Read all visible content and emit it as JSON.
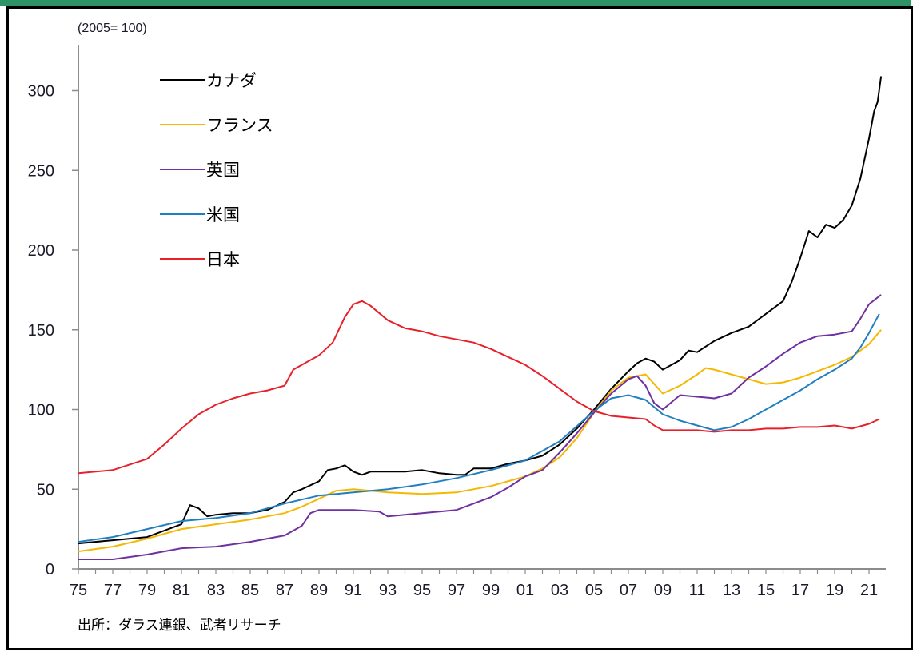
{
  "chart_data": {
    "type": "line",
    "title": "",
    "unit_label": "(2005= 100)",
    "source": "出所：ダラス連銀、武者リサーチ",
    "xlabel": "",
    "ylabel": "",
    "xlim": [
      1975,
      2022
    ],
    "ylim": [
      0,
      330
    ],
    "y_ticks": [
      0,
      50,
      100,
      150,
      200,
      250,
      300
    ],
    "y_tick_labels": [
      "0",
      "50",
      "100",
      "150",
      "200",
      "250",
      "300"
    ],
    "x_ticks": [
      1975,
      1977,
      1979,
      1981,
      1983,
      1985,
      1987,
      1989,
      1991,
      1993,
      1995,
      1997,
      1999,
      2001,
      2003,
      2005,
      2007,
      2009,
      2011,
      2013,
      2015,
      2017,
      2019,
      2021
    ],
    "x_tick_labels": [
      "75",
      "77",
      "79",
      "81",
      "83",
      "85",
      "87",
      "89",
      "91",
      "93",
      "95",
      "97",
      "99",
      "01",
      "03",
      "05",
      "07",
      "09",
      "11",
      "13",
      "15",
      "17",
      "19",
      "21"
    ],
    "grid": false,
    "legend_position": "top-left",
    "series": [
      {
        "name": "カナダ",
        "color": "#000000",
        "x": [
          1975,
          1977,
          1979,
          1980,
          1981,
          1981.5,
          1982,
          1982.5,
          1983,
          1984,
          1985,
          1986,
          1987,
          1987.5,
          1988,
          1989,
          1989.5,
          1990,
          1990.5,
          1991,
          1991.5,
          1992,
          1993,
          1994,
          1995,
          1996,
          1997,
          1997.5,
          1998,
          1999,
          2000,
          2001,
          2002,
          2003,
          2004,
          2005,
          2006,
          2007,
          2007.5,
          2008,
          2008.5,
          2009,
          2010,
          2010.5,
          2011,
          2012,
          2013,
          2014,
          2015,
          2016,
          2016.5,
          2017,
          2017.5,
          2018,
          2018.5,
          2019,
          2019.5,
          2020,
          2020.5,
          2021,
          2021.3,
          2021.5,
          2021.7
        ],
        "values": [
          16,
          18,
          20,
          24,
          28,
          40,
          38,
          33,
          34,
          35,
          35,
          37,
          42,
          48,
          50,
          55,
          62,
          63,
          65,
          61,
          59,
          61,
          61,
          61,
          62,
          60,
          59,
          59,
          63,
          63,
          66,
          68,
          71,
          78,
          88,
          100,
          113,
          124,
          129,
          132,
          130,
          125,
          131,
          137,
          136,
          143,
          148,
          152,
          160,
          168,
          180,
          195,
          212,
          208,
          216,
          214,
          219,
          228,
          245,
          270,
          287,
          293,
          309
        ]
      },
      {
        "name": "フランス",
        "color": "#f5b800",
        "x": [
          1975,
          1977,
          1979,
          1981,
          1983,
          1985,
          1987,
          1988,
          1989,
          1990,
          1991,
          1993,
          1995,
          1997,
          1999,
          2001,
          2002,
          2003,
          2004,
          2005,
          2006,
          2007,
          2008,
          2008.5,
          2009,
          2010,
          2011,
          2011.5,
          2012,
          2013,
          2014,
          2015,
          2016,
          2017,
          2018,
          2019,
          2020,
          2021,
          2021.7
        ],
        "values": [
          11,
          14,
          19,
          25,
          28,
          31,
          35,
          39,
          44,
          49,
          50,
          48,
          47,
          48,
          52,
          58,
          63,
          70,
          82,
          98,
          112,
          120,
          122,
          116,
          110,
          115,
          122,
          126,
          125,
          122,
          119,
          116,
          117,
          120,
          124,
          128,
          133,
          141,
          150
        ]
      },
      {
        "name": "英国",
        "color": "#7030a0",
        "x": [
          1975,
          1977,
          1979,
          1981,
          1983,
          1985,
          1987,
          1988,
          1988.5,
          1989,
          1991,
          1992.5,
          1993,
          1995,
          1997,
          1999,
          2000,
          2001,
          2002,
          2003,
          2004,
          2005,
          2006,
          2007,
          2007.5,
          2008,
          2008.5,
          2009,
          2010,
          2011,
          2012,
          2013,
          2014,
          2015,
          2016,
          2017,
          2018,
          2019,
          2020,
          2020.5,
          2021,
          2021.7
        ],
        "values": [
          6,
          6,
          9,
          13,
          14,
          17,
          21,
          27,
          35,
          37,
          37,
          36,
          33,
          35,
          37,
          45,
          51,
          58,
          62,
          73,
          85,
          98,
          110,
          119,
          121,
          115,
          104,
          100,
          109,
          108,
          107,
          110,
          120,
          127,
          135,
          142,
          146,
          147,
          149,
          157,
          166,
          172
        ]
      },
      {
        "name": "米国",
        "color": "#1f7fc0",
        "x": [
          1975,
          1977,
          1979,
          1981,
          1983,
          1985,
          1987,
          1989,
          1991,
          1993,
          1995,
          1997,
          1999,
          2001,
          2003,
          2005,
          2006,
          2007,
          2008,
          2009,
          2010,
          2011,
          2012,
          2013,
          2014,
          2015,
          2016,
          2017,
          2018,
          2019,
          2020,
          2020.5,
          2021,
          2021.6
        ],
        "values": [
          17,
          20,
          25,
          30,
          32,
          35,
          41,
          46,
          48,
          50,
          53,
          57,
          62,
          68,
          80,
          99,
          107,
          109,
          106,
          97,
          93,
          90,
          87,
          89,
          94,
          100,
          106,
          112,
          119,
          125,
          132,
          139,
          148,
          160
        ]
      },
      {
        "name": "日本",
        "color": "#e8202a",
        "x": [
          1975,
          1977,
          1979,
          1980,
          1981,
          1982,
          1983,
          1984,
          1985,
          1986,
          1987,
          1987.5,
          1988,
          1989,
          1989.8,
          1990.5,
          1991,
          1991.5,
          1992,
          1993,
          1994,
          1995,
          1996,
          1997,
          1998,
          1999,
          2000,
          2001,
          2002,
          2003,
          2004,
          2005,
          2006,
          2007,
          2008,
          2008.5,
          2009,
          2010,
          2011,
          2012,
          2013,
          2014,
          2015,
          2016,
          2017,
          2018,
          2019,
          2020,
          2021,
          2021.6
        ],
        "values": [
          60,
          62,
          69,
          78,
          88,
          97,
          103,
          107,
          110,
          112,
          115,
          125,
          128,
          134,
          142,
          158,
          166,
          168,
          165,
          156,
          151,
          149,
          146,
          144,
          142,
          138,
          133,
          128,
          121,
          113,
          105,
          99,
          96,
          95,
          94,
          90,
          87,
          87,
          87,
          86,
          87,
          87,
          88,
          88,
          89,
          89,
          90,
          88,
          91,
          94
        ]
      }
    ]
  }
}
